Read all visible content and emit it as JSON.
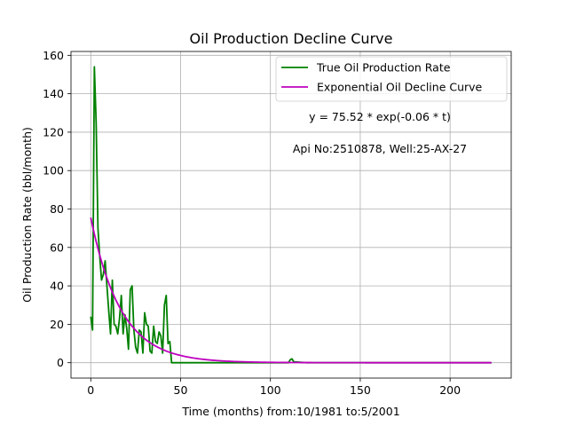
{
  "chart_data": {
    "type": "line",
    "title": "Oil Production Decline Curve",
    "xlabel": "Time (months) from:10/1981 to:5/2001",
    "ylabel": "Oil Production Rate (bbl/month)",
    "xlim": [
      -11,
      234
    ],
    "ylim": [
      -8,
      162
    ],
    "xticks": [
      0,
      50,
      100,
      150,
      200
    ],
    "yticks": [
      0,
      20,
      40,
      60,
      80,
      100,
      120,
      140,
      160
    ],
    "grid": true,
    "legend_position": "top-right",
    "annotations": [
      "y = 75.52 * exp(-0.06 * t)",
      "Api No:2510878, Well:25-AX-27"
    ],
    "series": [
      {
        "name": "True Oil Production Rate",
        "color": "#008000",
        "x": [
          0,
          1,
          2,
          3,
          4,
          5,
          6,
          7,
          8,
          9,
          10,
          11,
          12,
          13,
          14,
          15,
          16,
          17,
          18,
          19,
          20,
          21,
          22,
          23,
          24,
          25,
          26,
          27,
          28,
          29,
          30,
          31,
          32,
          33,
          34,
          35,
          36,
          37,
          38,
          39,
          40,
          41,
          42,
          43,
          44,
          45,
          46,
          47,
          48,
          49,
          50,
          60,
          80,
          100,
          110,
          111,
          112,
          113,
          120,
          150,
          200,
          223
        ],
        "y": [
          24,
          17,
          154,
          125,
          70,
          55,
          43,
          46,
          53,
          40,
          27,
          15,
          43,
          20,
          19,
          15,
          23,
          35,
          15,
          25,
          18,
          7,
          38,
          40,
          17,
          8,
          5,
          17,
          16,
          5,
          26,
          20,
          19,
          6,
          5,
          19,
          11,
          10,
          16,
          14,
          5,
          30,
          35,
          10,
          11,
          0,
          0,
          0,
          0,
          0,
          0,
          0,
          0,
          0,
          0,
          1.5,
          2,
          0.5,
          0,
          0,
          0,
          0
        ]
      },
      {
        "name": "Exponential Oil Decline Curve",
        "color": "#bf00bf",
        "fit": {
          "a": 75.52,
          "b": -0.06,
          "t_start": 0,
          "t_end": 223
        }
      }
    ]
  }
}
